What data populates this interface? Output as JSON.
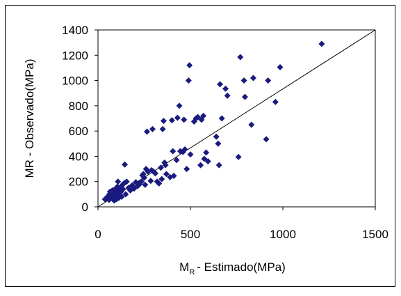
{
  "chart_data": {
    "type": "scatter",
    "title": "",
    "xlabel_main": "M",
    "xlabel_sub": "R",
    "xlabel_rest": "- Estimado(MPa)",
    "ylabel": "MR - Observado(MPa)",
    "xlim": [
      0,
      1500
    ],
    "ylim": [
      0,
      1400
    ],
    "x_ticks": [
      0,
      500,
      1000,
      1500
    ],
    "y_ticks": [
      0,
      200,
      400,
      600,
      800,
      1000,
      1200,
      1400
    ],
    "x_tick_labels": [
      "0",
      "500",
      "1000",
      "1500"
    ],
    "y_tick_labels": [
      "0",
      "200",
      "400",
      "600",
      "800",
      "1000",
      "1200",
      "1400"
    ],
    "grid": false,
    "legend": "none",
    "marker": "diamond",
    "marker_color": "#1a1a80",
    "reference_line": {
      "x": [
        0,
        1500
      ],
      "y": [
        0,
        1400
      ]
    },
    "points": [
      [
        38,
        60
      ],
      [
        48,
        75
      ],
      [
        55,
        85
      ],
      [
        60,
        55
      ],
      [
        62,
        100
      ],
      [
        65,
        120
      ],
      [
        70,
        70
      ],
      [
        72,
        90
      ],
      [
        75,
        110
      ],
      [
        78,
        130
      ],
      [
        80,
        60
      ],
      [
        82,
        80
      ],
      [
        85,
        100
      ],
      [
        88,
        50
      ],
      [
        90,
        75
      ],
      [
        92,
        140
      ],
      [
        95,
        95
      ],
      [
        98,
        115
      ],
      [
        100,
        60
      ],
      [
        102,
        85
      ],
      [
        105,
        160
      ],
      [
        108,
        200
      ],
      [
        110,
        110
      ],
      [
        112,
        70
      ],
      [
        115,
        130
      ],
      [
        118,
        95
      ],
      [
        120,
        150
      ],
      [
        125,
        120
      ],
      [
        128,
        80
      ],
      [
        130,
        170
      ],
      [
        135,
        140
      ],
      [
        140,
        185
      ],
      [
        145,
        335
      ],
      [
        150,
        100
      ],
      [
        155,
        200
      ],
      [
        165,
        150
      ],
      [
        175,
        130
      ],
      [
        185,
        170
      ],
      [
        195,
        145
      ],
      [
        205,
        195
      ],
      [
        215,
        165
      ],
      [
        225,
        180
      ],
      [
        235,
        200
      ],
      [
        240,
        250
      ],
      [
        245,
        260
      ],
      [
        250,
        230
      ],
      [
        255,
        175
      ],
      [
        260,
        300
      ],
      [
        265,
        595
      ],
      [
        270,
        280
      ],
      [
        285,
        205
      ],
      [
        290,
        290
      ],
      [
        295,
        615
      ],
      [
        300,
        280
      ],
      [
        310,
        265
      ],
      [
        320,
        200
      ],
      [
        330,
        185
      ],
      [
        340,
        310
      ],
      [
        345,
        220
      ],
      [
        350,
        615
      ],
      [
        355,
        680
      ],
      [
        360,
        350
      ],
      [
        365,
        330
      ],
      [
        370,
        260
      ],
      [
        390,
        235
      ],
      [
        400,
        685
      ],
      [
        405,
        440
      ],
      [
        410,
        245
      ],
      [
        425,
        370
      ],
      [
        430,
        705
      ],
      [
        440,
        800
      ],
      [
        445,
        440
      ],
      [
        460,
        435
      ],
      [
        465,
        690
      ],
      [
        470,
        455
      ],
      [
        480,
        300
      ],
      [
        490,
        1000
      ],
      [
        495,
        1120
      ],
      [
        500,
        415
      ],
      [
        520,
        675
      ],
      [
        530,
        700
      ],
      [
        540,
        710
      ],
      [
        555,
        330
      ],
      [
        560,
        690
      ],
      [
        570,
        720
      ],
      [
        575,
        380
      ],
      [
        585,
        430
      ],
      [
        595,
        360
      ],
      [
        640,
        555
      ],
      [
        650,
        500
      ],
      [
        655,
        330
      ],
      [
        660,
        970
      ],
      [
        670,
        700
      ],
      [
        690,
        935
      ],
      [
        700,
        880
      ],
      [
        760,
        395
      ],
      [
        770,
        1185
      ],
      [
        790,
        1000
      ],
      [
        795,
        870
      ],
      [
        830,
        650
      ],
      [
        840,
        1020
      ],
      [
        910,
        535
      ],
      [
        920,
        1000
      ],
      [
        960,
        830
      ],
      [
        985,
        1105
      ],
      [
        1210,
        1290
      ]
    ]
  }
}
